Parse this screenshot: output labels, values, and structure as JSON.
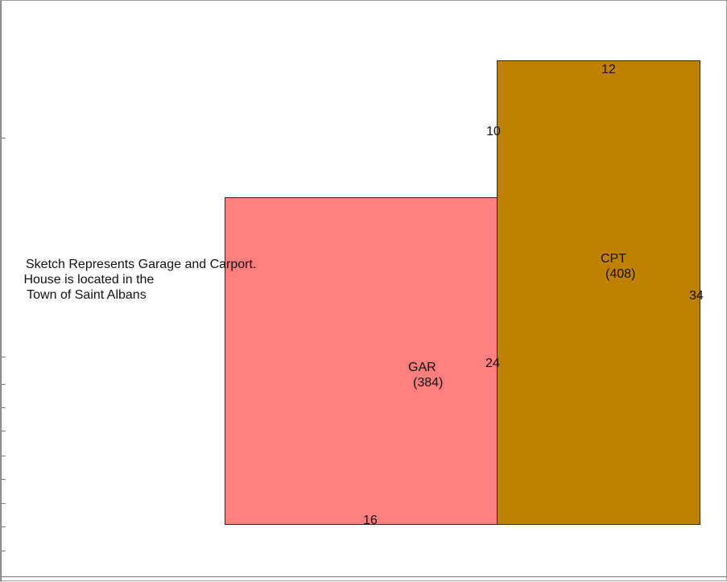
{
  "note": {
    "line1": "Sketch Represents Garage and Carport.",
    "line2": " House is located in the",
    "line3": " Town of Saint Albans"
  },
  "areas": [
    {
      "code": "GAR",
      "sqft": "(384)",
      "color": "#ff7f7f"
    },
    {
      "code": "CPT",
      "sqft": "(408)",
      "color": "#c08000"
    }
  ],
  "dimensions": {
    "cpt_top": "12",
    "cpt_left_upper": "10",
    "cpt_right": "34",
    "gar_right": "24",
    "gar_bottom": "16"
  }
}
